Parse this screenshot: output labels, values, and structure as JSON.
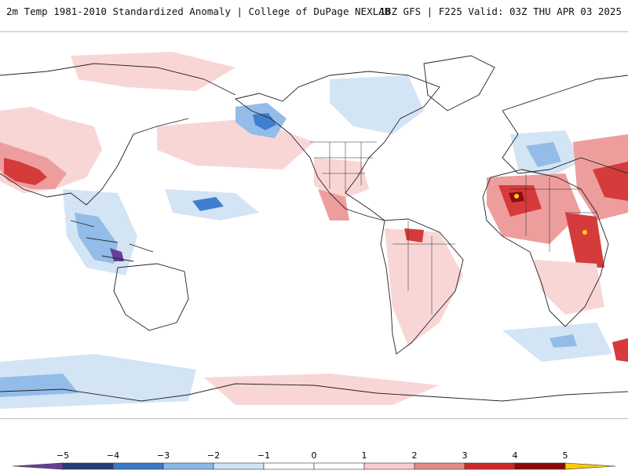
{
  "header": {
    "title": "2m Temp 1981-2010 Standardized Anomaly | College of DuPage NEXLAB",
    "run_info": "18Z GFS | F225 Valid: 03Z THU APR 03 2025"
  },
  "legend": {
    "ticks": [
      "−5",
      "−4",
      "−3",
      "−2",
      "−1",
      "0",
      "1",
      "2",
      "3",
      "4",
      "5"
    ],
    "colors": [
      "#6a3d9a",
      "#233f7a",
      "#3a79c6",
      "#8ab7e6",
      "#cfe2f6",
      "#ffffff",
      "#ffffff",
      "#f7cccc",
      "#e48b8b",
      "#cc2a2a",
      "#8a0a0a",
      "#ffcc00"
    ]
  },
  "map": {
    "palette": {
      "warm_light": "#f9d6d6",
      "warm_mid": "#ee9d9d",
      "warm_strong": "#d63b3b",
      "warm_extreme": "#900c0c",
      "cool_light": "#d3e4f5",
      "cool_mid": "#93bde8",
      "cool_strong": "#3f7fcf",
      "cool_extreme": "#233f7a",
      "violet": "#6a3d9a",
      "yellow": "#ffd400",
      "coast": "#222222"
    }
  }
}
